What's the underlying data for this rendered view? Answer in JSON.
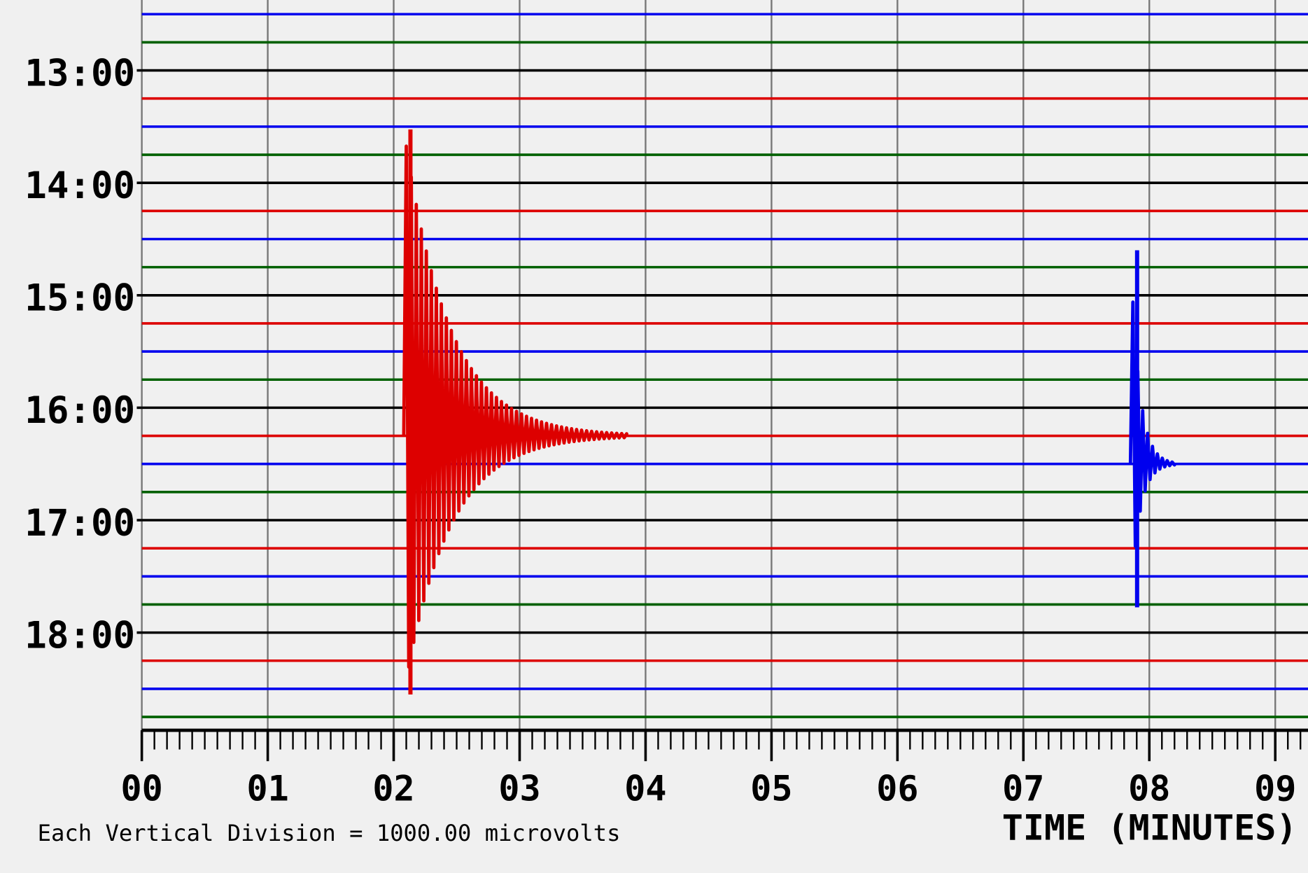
{
  "chart_data": {
    "type": "helicorder",
    "xlabel": "TIME (MINUTES)",
    "note": "Each Vertical Division = 1000.00 microvolts",
    "xlim": [
      0,
      9.26
    ],
    "xticks": [
      {
        "value": 0,
        "label": "00"
      },
      {
        "value": 1,
        "label": "01"
      },
      {
        "value": 2,
        "label": "02"
      },
      {
        "value": 3,
        "label": "03"
      },
      {
        "value": 4,
        "label": "04"
      },
      {
        "value": 5,
        "label": "05"
      },
      {
        "value": 6,
        "label": "06"
      },
      {
        "value": 7,
        "label": "07"
      },
      {
        "value": 8,
        "label": "08"
      },
      {
        "value": 9,
        "label": "09"
      }
    ],
    "ylim": [
      12.5,
      18.75
    ],
    "yticks": [
      {
        "value": 13,
        "label": "13:00"
      },
      {
        "value": 14,
        "label": "14:00"
      },
      {
        "value": 15,
        "label": "15:00"
      },
      {
        "value": 16,
        "label": "16:00"
      },
      {
        "value": 17,
        "label": "17:00"
      },
      {
        "value": 18,
        "label": "18:00"
      }
    ],
    "trace_colors": [
      "#0000ee",
      "#006000",
      "#000000",
      "#dd0000"
    ],
    "grid": true,
    "events": [
      {
        "trace": 16.25,
        "start": 2.08,
        "end": 3.85,
        "peak_up": 10.9,
        "peak_down": 9.2,
        "color": "#dd0000"
      },
      {
        "trace": 16.5,
        "start": 7.85,
        "end": 8.2,
        "peak_up": 7.6,
        "peak_down": 5.1,
        "color": "#0000ee"
      }
    ]
  }
}
